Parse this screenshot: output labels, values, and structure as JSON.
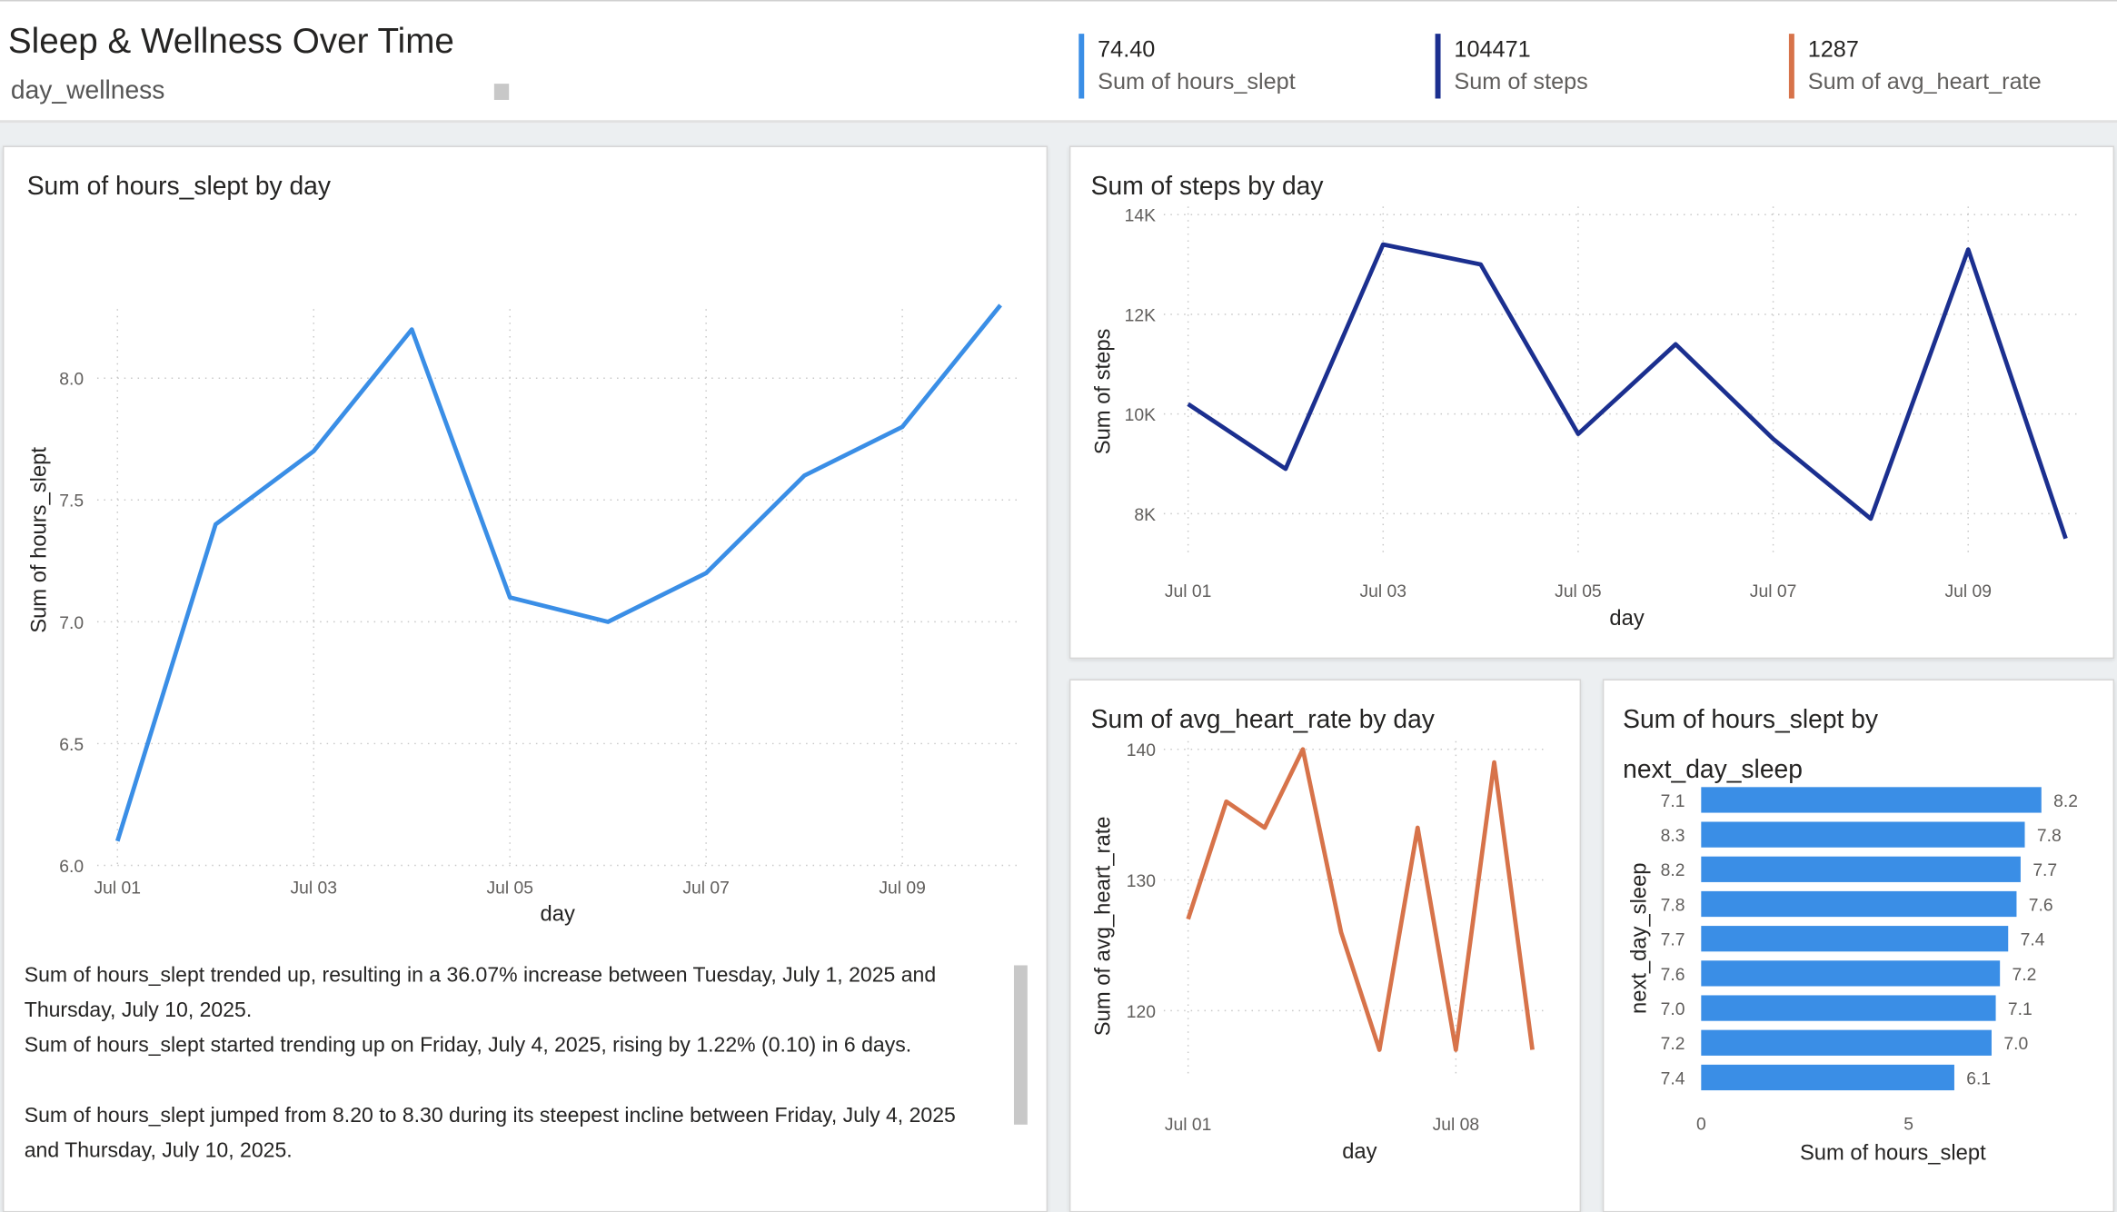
{
  "header": {
    "title": "Sleep & Wellness Over Time",
    "subtitle": "day_wellness"
  },
  "kpis": [
    {
      "value": "74.40",
      "label": "Sum of hours_slept",
      "color": "#3a8ee6"
    },
    {
      "value": "104471",
      "label": "Sum of steps",
      "color": "#1b2f8f"
    },
    {
      "value": "1287",
      "label": "Sum of avg_heart_rate",
      "color": "#d7734a"
    }
  ],
  "charts": {
    "hours": {
      "title": "Sum of hours_slept by day"
    },
    "steps": {
      "title": "Sum of steps by day"
    },
    "heart": {
      "title": "Sum of avg_heart_rate by day"
    },
    "next": {
      "title_line1": "Sum of hours_slept by",
      "title_line2": "next_day_sleep"
    }
  },
  "narrative": {
    "line1": "Sum of hours_slept trended up, resulting in a 36.07% increase between Tuesday, July 1, 2025 and",
    "line2": "Thursday, July 10, 2025.",
    "line3": "Sum of hours_slept started trending up on Friday, July 4, 2025, rising by 1.22% (0.10) in 6 days.",
    "line4": "Sum of hours_slept jumped from 8.20 to 8.30 during its steepest incline between Friday, July 4, 2025",
    "line5": "and Thursday, July 10, 2025."
  },
  "chart_data": [
    {
      "type": "line",
      "title": "Sum of hours_slept by day",
      "xlabel": "day",
      "ylabel": "Sum of hours_slept",
      "x": [
        "Jul 01",
        "Jul 02",
        "Jul 03",
        "Jul 04",
        "Jul 05",
        "Jul 06",
        "Jul 07",
        "Jul 08",
        "Jul 09",
        "Jul 10"
      ],
      "x_tick_labels": [
        "Jul 01",
        "Jul 03",
        "Jul 05",
        "Jul 07",
        "Jul 09"
      ],
      "values": [
        6.1,
        7.4,
        7.7,
        8.2,
        7.1,
        7.0,
        7.2,
        7.6,
        7.8,
        8.3
      ],
      "y_ticks": [
        "6.0",
        "6.5",
        "7.0",
        "7.5",
        "8.0"
      ],
      "ylim": [
        6.0,
        8.25
      ],
      "grid": true,
      "color": "#3a8ee6"
    },
    {
      "type": "line",
      "title": "Sum of steps by day",
      "xlabel": "day",
      "ylabel": "Sum of steps",
      "x": [
        "Jul 01",
        "Jul 02",
        "Jul 03",
        "Jul 04",
        "Jul 05",
        "Jul 06",
        "Jul 07",
        "Jul 08",
        "Jul 09",
        "Jul 10"
      ],
      "x_tick_labels": [
        "Jul 01",
        "Jul 03",
        "Jul 05",
        "Jul 07",
        "Jul 09"
      ],
      "values": [
        10200,
        8900,
        13400,
        13000,
        9600,
        11400,
        9500,
        7900,
        13300,
        7500
      ],
      "y_ticks": [
        "8K",
        "10K",
        "12K",
        "14K"
      ],
      "ylim": [
        7200,
        14000
      ],
      "grid": true,
      "color": "#1b2f8f"
    },
    {
      "type": "line",
      "title": "Sum of avg_heart_rate by day",
      "xlabel": "day",
      "ylabel": "Sum of avg_heart_rate",
      "x": [
        "Jul 01",
        "Jul 02",
        "Jul 03",
        "Jul 04",
        "Jul 05",
        "Jul 06",
        "Jul 07",
        "Jul 08",
        "Jul 09",
        "Jul 10"
      ],
      "x_tick_labels": [
        "Jul 01",
        "Jul 08"
      ],
      "values": [
        127,
        136,
        134,
        140,
        126,
        117,
        134,
        117,
        139,
        117
      ],
      "y_ticks": [
        "120",
        "130",
        "140"
      ],
      "ylim": [
        115,
        140
      ],
      "grid": true,
      "color": "#d7734a"
    },
    {
      "type": "bar",
      "orientation": "horizontal",
      "title": "Sum of hours_slept by next_day_sleep",
      "xlabel": "Sum of hours_slept",
      "ylabel": "next_day_sleep",
      "categories": [
        "7.1",
        "8.3",
        "8.2",
        "7.8",
        "7.7",
        "7.6",
        "7.0",
        "7.2",
        "7.4"
      ],
      "values": [
        8.2,
        7.8,
        7.7,
        7.6,
        7.4,
        7.2,
        7.1,
        7.0,
        6.1
      ],
      "data_labels": [
        "8.2",
        "7.8",
        "7.7",
        "7.6",
        "7.4",
        "7.2",
        "7.1",
        "7.0",
        "6.1"
      ],
      "x_ticks": [
        "0",
        "5"
      ],
      "xlim": [
        0,
        8.2
      ],
      "color": "#3a8ee6"
    }
  ]
}
